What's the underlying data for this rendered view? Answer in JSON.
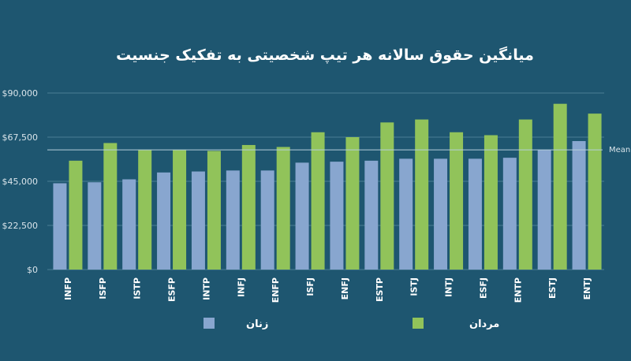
{
  "chart_data": {
    "type": "bar",
    "title": "میانگین حقوق سالانه هر تیپ شخصیتی به تفکیک جنسیت",
    "categories": [
      "INFP",
      "ISFP",
      "ISTP",
      "ESFP",
      "INTP",
      "INFJ",
      "ENFP",
      "ISFJ",
      "ENFJ",
      "ESTP",
      "ISTJ",
      "INTJ",
      "ESFJ",
      "ENTP",
      "ESTJ",
      "ENTJ"
    ],
    "series": [
      {
        "name": "زنان",
        "color": "#88a6cf",
        "values": [
          44000,
          44500,
          46000,
          49500,
          50000,
          50500,
          50500,
          54500,
          55000,
          55500,
          56500,
          56500,
          56500,
          57000,
          61000,
          65500
        ]
      },
      {
        "name": "مردان",
        "color": "#91c35a",
        "values": [
          55500,
          64500,
          61000,
          61000,
          60500,
          63500,
          62500,
          70000,
          67500,
          75000,
          76500,
          70000,
          68500,
          76500,
          84500,
          79500
        ]
      }
    ],
    "mean_line": {
      "label": "Mean",
      "value": 61000
    },
    "yticks": [
      "$0",
      "$22,500",
      "$45,000",
      "$67,500",
      "$90,000"
    ],
    "ylim": [
      0,
      90000
    ],
    "grid": true,
    "legend_position": "bottom"
  }
}
